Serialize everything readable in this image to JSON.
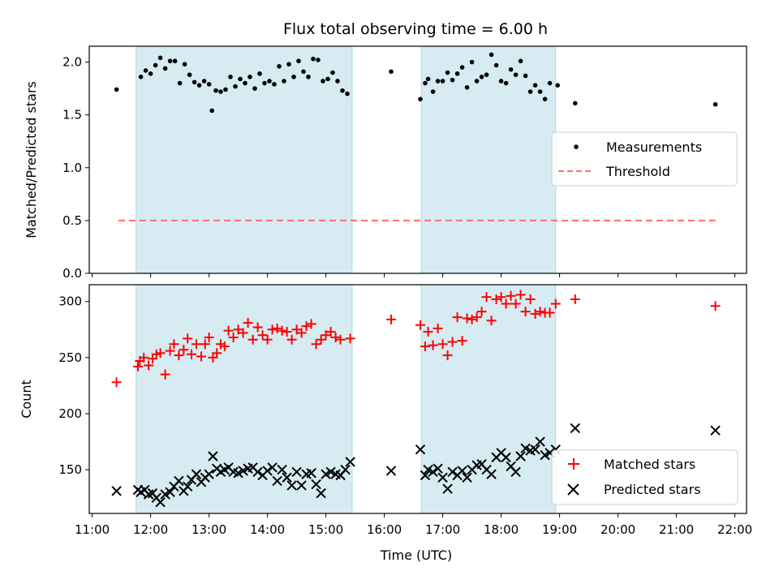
{
  "colors": {
    "background": "#ffffff",
    "shade": "#add8e6",
    "measurement": "#000000",
    "threshold": "#ff6b6b",
    "matched": "#ff0000",
    "predicted": "#000000"
  },
  "chart_data": [
    {
      "type": "scatter",
      "title": "Flux total observing time = 6.00 h",
      "xlabel": "",
      "ylabel": "Matched/Predicted stars",
      "xlim": [
        "10:57",
        "22:12"
      ],
      "ylim": [
        0,
        2.15
      ],
      "xticks": [
        "11:00",
        "12:00",
        "13:00",
        "14:00",
        "15:00",
        "16:00",
        "17:00",
        "18:00",
        "19:00",
        "20:00",
        "21:00",
        "22:00"
      ],
      "yticks": [
        "0.0",
        "0.5",
        "1.0",
        "1.5",
        "2.0"
      ],
      "shaded_intervals": [
        [
          "11:45",
          "15:27"
        ],
        [
          "16:38",
          "18:56"
        ]
      ],
      "legend": {
        "placement": "center-right",
        "entries": [
          "Measurements",
          "Threshold"
        ]
      },
      "threshold": {
        "name": "Threshold",
        "y": 0.5,
        "x_range": [
          "11:27",
          "21:40"
        ]
      },
      "series": [
        {
          "name": "Measurements",
          "points": [
            [
              "11:25",
              1.74
            ],
            [
              "11:50",
              1.86
            ],
            [
              "11:55",
              1.92
            ],
            [
              "12:00",
              1.89
            ],
            [
              "12:05",
              1.97
            ],
            [
              "12:10",
              2.04
            ],
            [
              "12:15",
              1.94
            ],
            [
              "12:20",
              2.01
            ],
            [
              "12:25",
              2.01
            ],
            [
              "12:30",
              1.8
            ],
            [
              "12:35",
              1.98
            ],
            [
              "12:40",
              1.88
            ],
            [
              "12:45",
              1.81
            ],
            [
              "12:50",
              1.78
            ],
            [
              "12:55",
              1.82
            ],
            [
              "13:00",
              1.79
            ],
            [
              "13:03",
              1.54
            ],
            [
              "13:07",
              1.73
            ],
            [
              "13:12",
              1.72
            ],
            [
              "13:17",
              1.74
            ],
            [
              "13:22",
              1.86
            ],
            [
              "13:27",
              1.77
            ],
            [
              "13:32",
              1.84
            ],
            [
              "13:37",
              1.8
            ],
            [
              "13:42",
              1.86
            ],
            [
              "13:47",
              1.75
            ],
            [
              "13:52",
              1.89
            ],
            [
              "13:57",
              1.8
            ],
            [
              "14:02",
              1.82
            ],
            [
              "14:07",
              1.79
            ],
            [
              "14:12",
              1.96
            ],
            [
              "14:17",
              1.82
            ],
            [
              "14:22",
              1.98
            ],
            [
              "14:27",
              1.86
            ],
            [
              "14:32",
              2.01
            ],
            [
              "14:37",
              1.91
            ],
            [
              "14:42",
              1.86
            ],
            [
              "14:47",
              2.03
            ],
            [
              "14:52",
              2.02
            ],
            [
              "14:57",
              1.82
            ],
            [
              "15:02",
              1.84
            ],
            [
              "15:07",
              1.9
            ],
            [
              "15:12",
              1.82
            ],
            [
              "15:17",
              1.73
            ],
            [
              "15:22",
              1.7
            ],
            [
              "16:07",
              1.91
            ],
            [
              "16:37",
              1.65
            ],
            [
              "16:42",
              1.8
            ],
            [
              "16:45",
              1.84
            ],
            [
              "16:50",
              1.72
            ],
            [
              "16:55",
              1.82
            ],
            [
              "17:00",
              1.82
            ],
            [
              "17:05",
              1.9
            ],
            [
              "17:10",
              1.83
            ],
            [
              "17:15",
              1.89
            ],
            [
              "17:20",
              1.95
            ],
            [
              "17:25",
              1.76
            ],
            [
              "17:30",
              2.0
            ],
            [
              "17:35",
              1.82
            ],
            [
              "17:40",
              1.86
            ],
            [
              "17:45",
              1.88
            ],
            [
              "17:50",
              2.07
            ],
            [
              "17:55",
              1.97
            ],
            [
              "18:00",
              1.82
            ],
            [
              "18:05",
              1.8
            ],
            [
              "18:10",
              1.93
            ],
            [
              "18:15",
              1.88
            ],
            [
              "18:20",
              2.01
            ],
            [
              "18:25",
              1.87
            ],
            [
              "18:30",
              1.72
            ],
            [
              "18:35",
              1.78
            ],
            [
              "18:40",
              1.72
            ],
            [
              "18:45",
              1.65
            ],
            [
              "18:50",
              1.8
            ],
            [
              "18:58",
              1.78
            ],
            [
              "19:16",
              1.61
            ],
            [
              "21:40",
              1.6
            ]
          ]
        }
      ]
    },
    {
      "type": "scatter",
      "title": "",
      "xlabel": "Time (UTC)",
      "ylabel": "Count",
      "xlim": [
        "10:57",
        "22:12"
      ],
      "ylim": [
        111,
        315
      ],
      "xticks": [
        "11:00",
        "12:00",
        "13:00",
        "14:00",
        "15:00",
        "16:00",
        "17:00",
        "18:00",
        "19:00",
        "20:00",
        "21:00",
        "22:00"
      ],
      "yticks": [
        "150",
        "200",
        "250",
        "300"
      ],
      "shaded_intervals": [
        [
          "11:45",
          "15:27"
        ],
        [
          "16:38",
          "18:56"
        ]
      ],
      "legend": {
        "placement": "lower-right",
        "entries": [
          "Matched stars",
          "Predicted stars"
        ]
      },
      "series": [
        {
          "name": "Matched stars",
          "points": [
            [
              "11:25",
              228
            ],
            [
              "11:47",
              242
            ],
            [
              "11:49",
              247
            ],
            [
              "11:53",
              250
            ],
            [
              "11:58",
              243
            ],
            [
              "12:02",
              249
            ],
            [
              "12:06",
              253
            ],
            [
              "12:10",
              254
            ],
            [
              "12:15",
              235
            ],
            [
              "12:20",
              256
            ],
            [
              "12:24",
              262
            ],
            [
              "12:29",
              252
            ],
            [
              "12:34",
              257
            ],
            [
              "12:38",
              267
            ],
            [
              "12:42",
              253
            ],
            [
              "12:47",
              262
            ],
            [
              "12:52",
              251
            ],
            [
              "12:56",
              262
            ],
            [
              "13:00",
              268
            ],
            [
              "13:04",
              250
            ],
            [
              "13:08",
              254
            ],
            [
              "13:12",
              262
            ],
            [
              "13:16",
              260
            ],
            [
              "13:20",
              274
            ],
            [
              "13:25",
              268
            ],
            [
              "13:30",
              275
            ],
            [
              "13:35",
              272
            ],
            [
              "13:40",
              281
            ],
            [
              "13:45",
              266
            ],
            [
              "13:50",
              277
            ],
            [
              "13:55",
              270
            ],
            [
              "14:00",
              266
            ],
            [
              "14:05",
              275
            ],
            [
              "14:10",
              276
            ],
            [
              "14:15",
              274
            ],
            [
              "14:20",
              273
            ],
            [
              "14:25",
              266
            ],
            [
              "14:30",
              275
            ],
            [
              "14:35",
              272
            ],
            [
              "14:40",
              278
            ],
            [
              "14:45",
              280
            ],
            [
              "14:50",
              262
            ],
            [
              "14:55",
              266
            ],
            [
              "15:00",
              270
            ],
            [
              "15:05",
              273
            ],
            [
              "15:10",
              268
            ],
            [
              "15:15",
              266
            ],
            [
              "15:25",
              267
            ],
            [
              "16:07",
              284
            ],
            [
              "16:37",
              279
            ],
            [
              "16:42",
              260
            ],
            [
              "16:45",
              273
            ],
            [
              "16:50",
              261
            ],
            [
              "16:55",
              276
            ],
            [
              "17:00",
              262
            ],
            [
              "17:05",
              252
            ],
            [
              "17:10",
              264
            ],
            [
              "17:15",
              286
            ],
            [
              "17:20",
              265
            ],
            [
              "17:25",
              285
            ],
            [
              "17:30",
              284
            ],
            [
              "17:35",
              286
            ],
            [
              "17:40",
              291
            ],
            [
              "17:45",
              304
            ],
            [
              "17:50",
              283
            ],
            [
              "17:55",
              302
            ],
            [
              "18:00",
              304
            ],
            [
              "18:05",
              298
            ],
            [
              "18:10",
              305
            ],
            [
              "18:15",
              298
            ],
            [
              "18:20",
              306
            ],
            [
              "18:25",
              291
            ],
            [
              "18:30",
              302
            ],
            [
              "18:35",
              289
            ],
            [
              "18:40",
              291
            ],
            [
              "18:45",
              290
            ],
            [
              "18:50",
              290
            ],
            [
              "18:56",
              298
            ],
            [
              "19:16",
              302
            ],
            [
              "21:40",
              296
            ]
          ]
        },
        {
          "name": "Predicted stars",
          "points": [
            [
              "11:25",
              131
            ],
            [
              "11:47",
              132
            ],
            [
              "11:50",
              130
            ],
            [
              "11:54",
              132
            ],
            [
              "11:58",
              128
            ],
            [
              "12:02",
              129
            ],
            [
              "12:06",
              125
            ],
            [
              "12:10",
              121
            ],
            [
              "12:15",
              128
            ],
            [
              "12:20",
              130
            ],
            [
              "12:24",
              135
            ],
            [
              "12:29",
              140
            ],
            [
              "12:34",
              131
            ],
            [
              "12:38",
              135
            ],
            [
              "12:42",
              141
            ],
            [
              "12:47",
              146
            ],
            [
              "12:52",
              139
            ],
            [
              "12:56",
              143
            ],
            [
              "13:00",
              146
            ],
            [
              "13:04",
              162
            ],
            [
              "13:08",
              151
            ],
            [
              "13:12",
              148
            ],
            [
              "13:16",
              150
            ],
            [
              "13:20",
              152
            ],
            [
              "13:25",
              148
            ],
            [
              "13:30",
              147
            ],
            [
              "13:35",
              149
            ],
            [
              "13:40",
              151
            ],
            [
              "13:45",
              152
            ],
            [
              "13:50",
              148
            ],
            [
              "13:55",
              145
            ],
            [
              "14:00",
              149
            ],
            [
              "14:05",
              152
            ],
            [
              "14:10",
              140
            ],
            [
              "14:15",
              150
            ],
            [
              "14:20",
              143
            ],
            [
              "14:25",
              136
            ],
            [
              "14:30",
              148
            ],
            [
              "14:35",
              136
            ],
            [
              "14:40",
              146
            ],
            [
              "14:45",
              147
            ],
            [
              "14:50",
              137
            ],
            [
              "14:55",
              129
            ],
            [
              "15:00",
              146
            ],
            [
              "15:05",
              148
            ],
            [
              "15:10",
              146
            ],
            [
              "15:15",
              145
            ],
            [
              "15:20",
              150
            ],
            [
              "15:25",
              157
            ],
            [
              "16:07",
              149
            ],
            [
              "16:37",
              168
            ],
            [
              "16:42",
              145
            ],
            [
              "16:45",
              150
            ],
            [
              "16:50",
              148
            ],
            [
              "16:55",
              151
            ],
            [
              "17:00",
              143
            ],
            [
              "17:05",
              133
            ],
            [
              "17:10",
              148
            ],
            [
              "17:15",
              145
            ],
            [
              "17:20",
              149
            ],
            [
              "17:25",
              143
            ],
            [
              "17:30",
              150
            ],
            [
              "17:35",
              154
            ],
            [
              "17:40",
              155
            ],
            [
              "17:45",
              150
            ],
            [
              "17:50",
              146
            ],
            [
              "17:55",
              161
            ],
            [
              "18:00",
              165
            ],
            [
              "18:05",
              161
            ],
            [
              "18:10",
              153
            ],
            [
              "18:15",
              148
            ],
            [
              "18:20",
              162
            ],
            [
              "18:25",
              169
            ],
            [
              "18:30",
              167
            ],
            [
              "18:35",
              168
            ],
            [
              "18:40",
              175
            ],
            [
              "18:45",
              163
            ],
            [
              "18:50",
              165
            ],
            [
              "18:56",
              168
            ],
            [
              "19:16",
              187
            ],
            [
              "21:40",
              185
            ]
          ]
        }
      ]
    }
  ]
}
